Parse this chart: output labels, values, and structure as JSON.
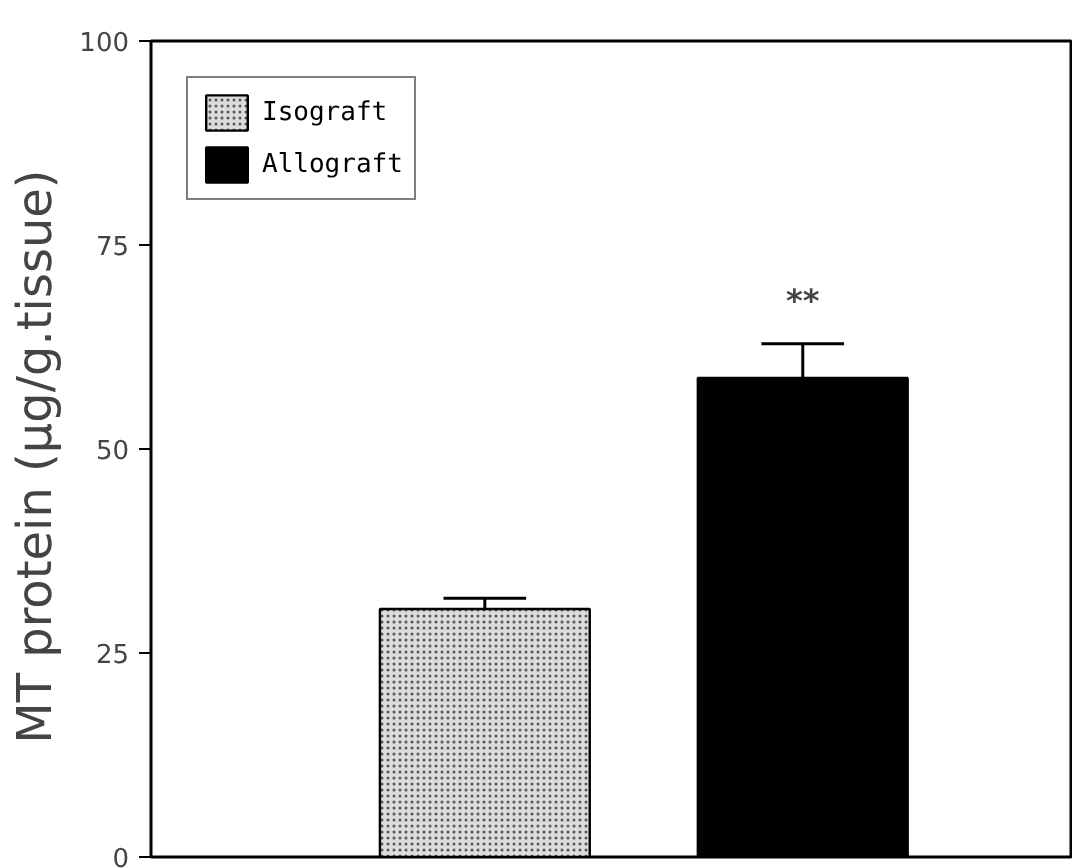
{
  "chart_data": {
    "type": "bar",
    "ylabel": "MT protein  (µg/g.tissue)",
    "categories": [
      null,
      null
    ],
    "series": [
      {
        "name": "Isograft",
        "color": "#dcdcdc",
        "values": [
          30.4,
          null
        ],
        "errors": [
          1.3,
          null
        ]
      },
      {
        "name": "Allograft",
        "color": "#000000",
        "values": [
          null,
          58.7
        ],
        "errors": [
          null,
          4.2
        ]
      }
    ],
    "ylim": [
      0,
      100
    ],
    "yticks": [
      0,
      25,
      50,
      75,
      100
    ],
    "tick_labels": "y",
    "grid": false,
    "legend": "top left",
    "annotations": [
      "**"
    ]
  }
}
